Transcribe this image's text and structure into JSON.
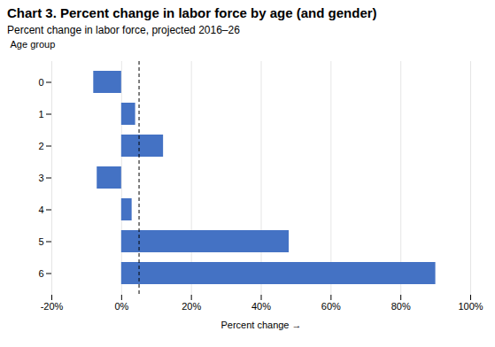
{
  "chart_data": {
    "type": "bar",
    "orientation": "horizontal",
    "title": "Chart 3. Percent change in labor force by age (and gender)",
    "subtitle": "Percent change in labor force, projected 2016–26",
    "ylabel": "Age group",
    "xlabel": "Percent change",
    "categories": [
      0,
      1,
      2,
      3,
      4,
      5,
      6
    ],
    "values": [
      -8,
      4,
      12,
      -7,
      3,
      48,
      90
    ],
    "color": "#4472C4",
    "xlim": [
      -20,
      100
    ],
    "xticks": [
      {
        "value": -20,
        "label": "-20%"
      },
      {
        "value": 0,
        "label": "0%"
      },
      {
        "value": 20,
        "label": "20%"
      },
      {
        "value": 40,
        "label": "40%"
      },
      {
        "value": 60,
        "label": "60%"
      },
      {
        "value": 80,
        "label": "80%"
      },
      {
        "value": 100,
        "label": "100%"
      }
    ],
    "dashed_line_x": 5,
    "grid": true
  }
}
